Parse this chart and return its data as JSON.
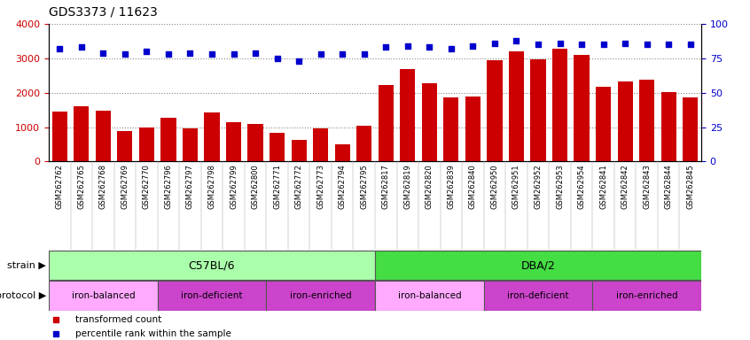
{
  "title": "GDS3373 / 11623",
  "samples": [
    "GSM262762",
    "GSM262765",
    "GSM262768",
    "GSM262769",
    "GSM262770",
    "GSM262796",
    "GSM262797",
    "GSM262798",
    "GSM262799",
    "GSM262800",
    "GSM262771",
    "GSM262772",
    "GSM262773",
    "GSM262794",
    "GSM262795",
    "GSM262817",
    "GSM262819",
    "GSM262820",
    "GSM262839",
    "GSM262840",
    "GSM262950",
    "GSM262951",
    "GSM262952",
    "GSM262953",
    "GSM262954",
    "GSM262841",
    "GSM262842",
    "GSM262843",
    "GSM262844",
    "GSM262845"
  ],
  "bar_values": [
    1450,
    1600,
    1480,
    880,
    1000,
    1280,
    960,
    1420,
    1150,
    1080,
    840,
    620,
    960,
    500,
    1050,
    2230,
    2680,
    2280,
    1860,
    1880,
    2950,
    3200,
    2980,
    3280,
    3100,
    2170,
    2330,
    2370,
    2020,
    1860
  ],
  "dot_values": [
    82,
    83,
    79,
    78,
    80,
    78,
    79,
    78,
    78,
    79,
    75,
    73,
    78,
    78,
    78,
    83,
    84,
    83,
    82,
    84,
    86,
    88,
    85,
    86,
    85,
    85,
    86,
    85,
    85,
    85
  ],
  "bar_color": "#cc0000",
  "dot_color": "#0000cc",
  "ylim_left": [
    0,
    4000
  ],
  "ylim_right": [
    0,
    100
  ],
  "yticks_left": [
    0,
    1000,
    2000,
    3000,
    4000
  ],
  "yticks_right": [
    0,
    25,
    50,
    75,
    100
  ],
  "strain_groups": [
    {
      "label": "C57BL/6",
      "start": 0,
      "end": 15,
      "color": "#aaffaa"
    },
    {
      "label": "DBA/2",
      "start": 15,
      "end": 30,
      "color": "#44dd44"
    }
  ],
  "protocol_groups": [
    {
      "label": "iron-balanced",
      "start": 0,
      "end": 5,
      "color": "#ffaaff"
    },
    {
      "label": "iron-deficient",
      "start": 5,
      "end": 10,
      "color": "#cc44cc"
    },
    {
      "label": "iron-enriched",
      "start": 10,
      "end": 15,
      "color": "#cc44cc"
    },
    {
      "label": "iron-balanced",
      "start": 15,
      "end": 20,
      "color": "#ffaaff"
    },
    {
      "label": "iron-deficient",
      "start": 20,
      "end": 25,
      "color": "#cc44cc"
    },
    {
      "label": "iron-enriched",
      "start": 25,
      "end": 30,
      "color": "#cc44cc"
    }
  ],
  "background_color": "#ffffff",
  "grid_color": "#888888",
  "title_fontsize": 10,
  "label_fontsize": 8,
  "tick_fontsize": 7,
  "xtick_fontsize": 6
}
